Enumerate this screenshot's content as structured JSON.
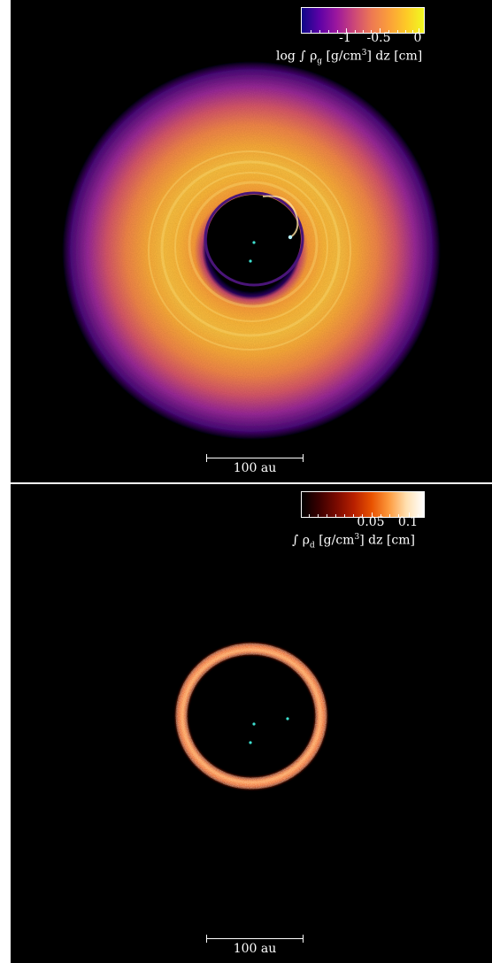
{
  "gas_panel": {
    "colorbar": {
      "tick_labels": [
        "-1",
        "-0.5",
        "0"
      ],
      "title_prefix": "log ∫ ",
      "title_symbol": "ρ",
      "title_sub": "g",
      "title_mid": " [g/cm",
      "title_sup": "3",
      "title_suffix": "] dz [cm]",
      "colormap": [
        "#0d0887",
        "#5c01a6",
        "#9c179e",
        "#cc4778",
        "#ed7953",
        "#fb9f3a",
        "#fdca26",
        "#f0f921"
      ]
    },
    "scalebar_label": "100 au"
  },
  "dust_panel": {
    "colorbar": {
      "tick_labels": [
        "0.05",
        "0.1"
      ],
      "title_prefix": "∫ ",
      "title_symbol": "ρ",
      "title_sub": "d",
      "title_mid": " [g/cm",
      "title_sup": "3",
      "title_suffix": "] dz [cm]",
      "colormap": [
        "#000000",
        "#3a0000",
        "#7a0a00",
        "#b82000",
        "#e85200",
        "#fd9a3e",
        "#ffe0b0",
        "#ffffff"
      ]
    },
    "scalebar_label": "100 au"
  },
  "marker_color": "#3ee0d0"
}
